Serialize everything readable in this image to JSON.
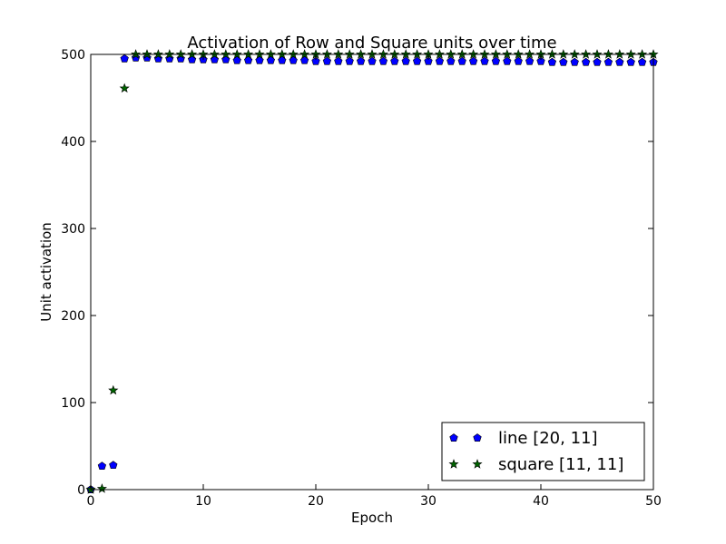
{
  "chart_data": {
    "type": "scatter",
    "title": "Activation of Row and Square units over time",
    "xlabel": "Epoch",
    "ylabel": "Unit activation",
    "xlim": [
      0,
      50
    ],
    "ylim": [
      0,
      500
    ],
    "xticks": [
      0,
      10,
      20,
      30,
      40,
      50
    ],
    "yticks": [
      0,
      100,
      200,
      300,
      400,
      500
    ],
    "grid": false,
    "legend_position": "lower-right",
    "series": [
      {
        "name": "line [20, 11]",
        "marker": "pentagon",
        "color": "#0000ff",
        "x": [
          0,
          1,
          2,
          3,
          4,
          5,
          6,
          7,
          8,
          9,
          10,
          11,
          12,
          13,
          14,
          15,
          16,
          17,
          18,
          19,
          20,
          21,
          22,
          23,
          24,
          25,
          26,
          27,
          28,
          29,
          30,
          31,
          32,
          33,
          34,
          35,
          36,
          37,
          38,
          39,
          40,
          41,
          42,
          43,
          44,
          45,
          46,
          47,
          48,
          49,
          50
        ],
        "y": [
          0,
          27,
          28,
          495,
          496,
          496,
          495,
          495,
          495,
          494,
          494,
          494,
          494,
          493,
          493,
          493,
          493,
          493,
          493,
          493,
          492,
          492,
          492,
          492,
          492,
          492,
          492,
          492,
          492,
          492,
          492,
          492,
          492,
          492,
          492,
          492,
          492,
          492,
          492,
          492,
          492,
          491,
          491,
          491,
          491,
          491,
          491,
          491,
          491,
          491,
          491
        ]
      },
      {
        "name": "square [11, 11]",
        "marker": "star",
        "color": "#006400",
        "x": [
          0,
          1,
          2,
          3,
          4,
          5,
          6,
          7,
          8,
          9,
          10,
          11,
          12,
          13,
          14,
          15,
          16,
          17,
          18,
          19,
          20,
          21,
          22,
          23,
          24,
          25,
          26,
          27,
          28,
          29,
          30,
          31,
          32,
          33,
          34,
          35,
          36,
          37,
          38,
          39,
          40,
          41,
          42,
          43,
          44,
          45,
          46,
          47,
          48,
          49,
          50
        ],
        "y": [
          0,
          1,
          114,
          461,
          500,
          500,
          500,
          500,
          500,
          500,
          500,
          500,
          500,
          500,
          500,
          500,
          500,
          500,
          500,
          500,
          500,
          500,
          500,
          500,
          500,
          500,
          500,
          500,
          500,
          500,
          500,
          500,
          500,
          500,
          500,
          500,
          500,
          500,
          500,
          500,
          500,
          500,
          500,
          500,
          500,
          500,
          500,
          500,
          500,
          500,
          500
        ]
      }
    ]
  }
}
